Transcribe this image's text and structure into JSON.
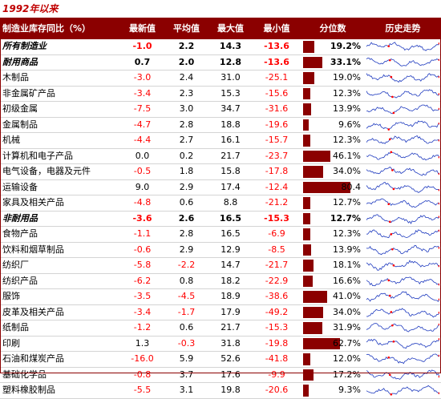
{
  "title": "1992年以来",
  "colors": {
    "header_bg": "#8b0000",
    "bar": "#8b0000",
    "negative": "#ff0000",
    "spark_line": "#1f3bbf",
    "spark_marker": "#ff0000"
  },
  "headers": {
    "name": "制造业库存同比（%）",
    "latest": "最新值",
    "mean": "平均值",
    "max": "最大值",
    "min": "最小值",
    "percentile": "分位数",
    "trend": "历史走势"
  },
  "rows": [
    {
      "name": "所有制造业",
      "latest": "-1.0",
      "mean": "2.2",
      "max": "14.3",
      "min": "-13.6",
      "pct": "19.2%",
      "pct_value": 0.192,
      "bold": true
    },
    {
      "name": "耐用商品",
      "latest": "0.7",
      "mean": "2.0",
      "max": "12.8",
      "min": "-13.6",
      "pct": "33.1%",
      "pct_value": 0.331,
      "bold": true
    },
    {
      "name": "木制品",
      "latest": "-3.0",
      "mean": "2.4",
      "max": "31.0",
      "min": "-25.1",
      "pct": "19.0%",
      "pct_value": 0.19,
      "bold": false
    },
    {
      "name": "非金属矿产品",
      "latest": "-3.4",
      "mean": "2.3",
      "max": "15.3",
      "min": "-15.6",
      "pct": "12.3%",
      "pct_value": 0.123,
      "bold": false
    },
    {
      "name": "初级金属",
      "latest": "-7.5",
      "mean": "3.0",
      "max": "34.7",
      "min": "-31.6",
      "pct": "13.9%",
      "pct_value": 0.139,
      "bold": false
    },
    {
      "name": "金属制品",
      "latest": "-4.7",
      "mean": "2.8",
      "max": "18.8",
      "min": "-19.6",
      "pct": "9.6%",
      "pct_value": 0.096,
      "bold": false
    },
    {
      "name": "机械",
      "latest": "-4.4",
      "mean": "2.7",
      "max": "16.1",
      "min": "-15.7",
      "pct": "12.3%",
      "pct_value": 0.123,
      "bold": false
    },
    {
      "name": "计算机和电子产品",
      "latest": "0.0",
      "mean": "0.2",
      "max": "21.7",
      "min": "-23.7",
      "pct": "46.1%",
      "pct_value": 0.461,
      "bold": false
    },
    {
      "name": "电气设备，电器及元件",
      "latest": "-0.5",
      "mean": "1.8",
      "max": "15.8",
      "min": "-17.8",
      "pct": "34.0%",
      "pct_value": 0.34,
      "bold": false
    },
    {
      "name": "运输设备",
      "latest": "9.0",
      "mean": "2.9",
      "max": "17.4",
      "min": "-12.4",
      "pct": "80.4",
      "pct_value": 0.804,
      "bold": false
    },
    {
      "name": "家具及相关产品",
      "latest": "-4.8",
      "mean": "0.6",
      "max": "8.8",
      "min": "-21.2",
      "pct": "12.7%",
      "pct_value": 0.127,
      "bold": false
    },
    {
      "name": "非耐用品",
      "latest": "-3.6",
      "mean": "2.6",
      "max": "16.5",
      "min": "-15.3",
      "pct": "12.7%",
      "pct_value": 0.127,
      "bold": true
    },
    {
      "name": "食物产品",
      "latest": "-1.1",
      "mean": "2.8",
      "max": "16.5",
      "min": "-6.9",
      "pct": "12.3%",
      "pct_value": 0.123,
      "bold": false
    },
    {
      "name": "饮料和烟草制品",
      "latest": "-0.6",
      "mean": "2.9",
      "max": "12.9",
      "min": "-8.5",
      "pct": "13.9%",
      "pct_value": 0.139,
      "bold": false
    },
    {
      "name": "纺织厂",
      "latest": "-5.8",
      "mean": "-2.2",
      "max": "14.7",
      "min": "-21.7",
      "pct": "18.1%",
      "pct_value": 0.181,
      "bold": false
    },
    {
      "name": "纺织产品",
      "latest": "-6.2",
      "mean": "0.8",
      "max": "18.2",
      "min": "-22.9",
      "pct": "16.6%",
      "pct_value": 0.166,
      "bold": false
    },
    {
      "name": "服饰",
      "latest": "-3.5",
      "mean": "-4.5",
      "max": "18.9",
      "min": "-38.6",
      "pct": "41.0%",
      "pct_value": 0.41,
      "bold": false
    },
    {
      "name": "皮革及相关产品",
      "latest": "-3.4",
      "mean": "-1.7",
      "max": "17.9",
      "min": "-49.2",
      "pct": "34.0%",
      "pct_value": 0.34,
      "bold": false
    },
    {
      "name": "纸制品",
      "latest": "-1.2",
      "mean": "0.6",
      "max": "21.7",
      "min": "-15.3",
      "pct": "31.9%",
      "pct_value": 0.319,
      "bold": false
    },
    {
      "name": "印刷",
      "latest": "1.3",
      "mean": "-0.3",
      "max": "31.8",
      "min": "-19.8",
      "pct": "62.7%",
      "pct_value": 0.627,
      "bold": false
    },
    {
      "name": "石油和煤炭产品",
      "latest": "-16.0",
      "mean": "5.9",
      "max": "52.6",
      "min": "-41.8",
      "pct": "12.0%",
      "pct_value": 0.12,
      "bold": false
    },
    {
      "name": "基础化学品",
      "latest": "-0.8",
      "mean": "3.7",
      "max": "17.6",
      "min": "-9.9",
      "pct": "17.2%",
      "pct_value": 0.172,
      "bold": false
    },
    {
      "name": "塑料橡胶制品",
      "latest": "-5.5",
      "mean": "3.1",
      "max": "19.8",
      "min": "-20.6",
      "pct": "9.3%",
      "pct_value": 0.093,
      "bold": false
    }
  ]
}
